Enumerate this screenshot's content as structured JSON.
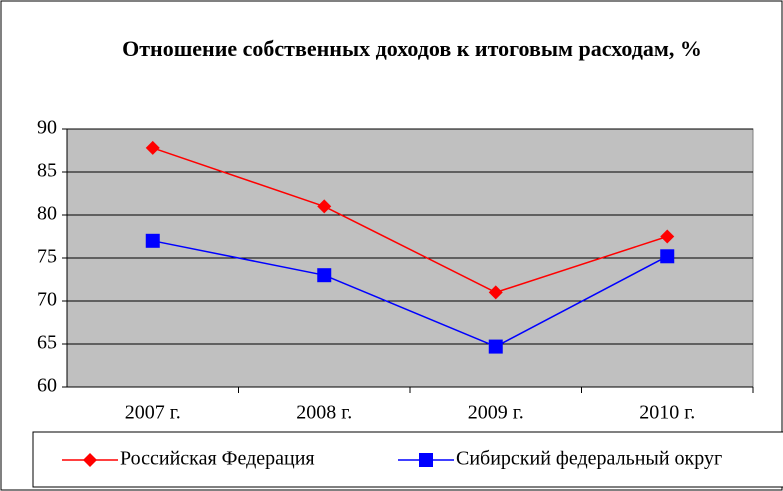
{
  "chart_data": {
    "type": "line",
    "title": "Отношение собственных доходов к итоговым расходам, %",
    "categories": [
      "2007 г.",
      "2008 г.",
      "2009 г.",
      "2010 г."
    ],
    "series": [
      {
        "name": "Российская Федерация",
        "color": "#ff0000",
        "marker": "diamond",
        "values": [
          87.8,
          81,
          71,
          77.5
        ]
      },
      {
        "name": "Сибирский федеральный округ",
        "color": "#0000ff",
        "marker": "square",
        "values": [
          77,
          73,
          64.7,
          75.2
        ]
      }
    ],
    "ylim": [
      60,
      90
    ],
    "yticks": [
      60,
      65,
      70,
      75,
      80,
      85,
      90
    ],
    "grid": true,
    "plot_background": "#c0c0c0",
    "legend": "bottom"
  }
}
